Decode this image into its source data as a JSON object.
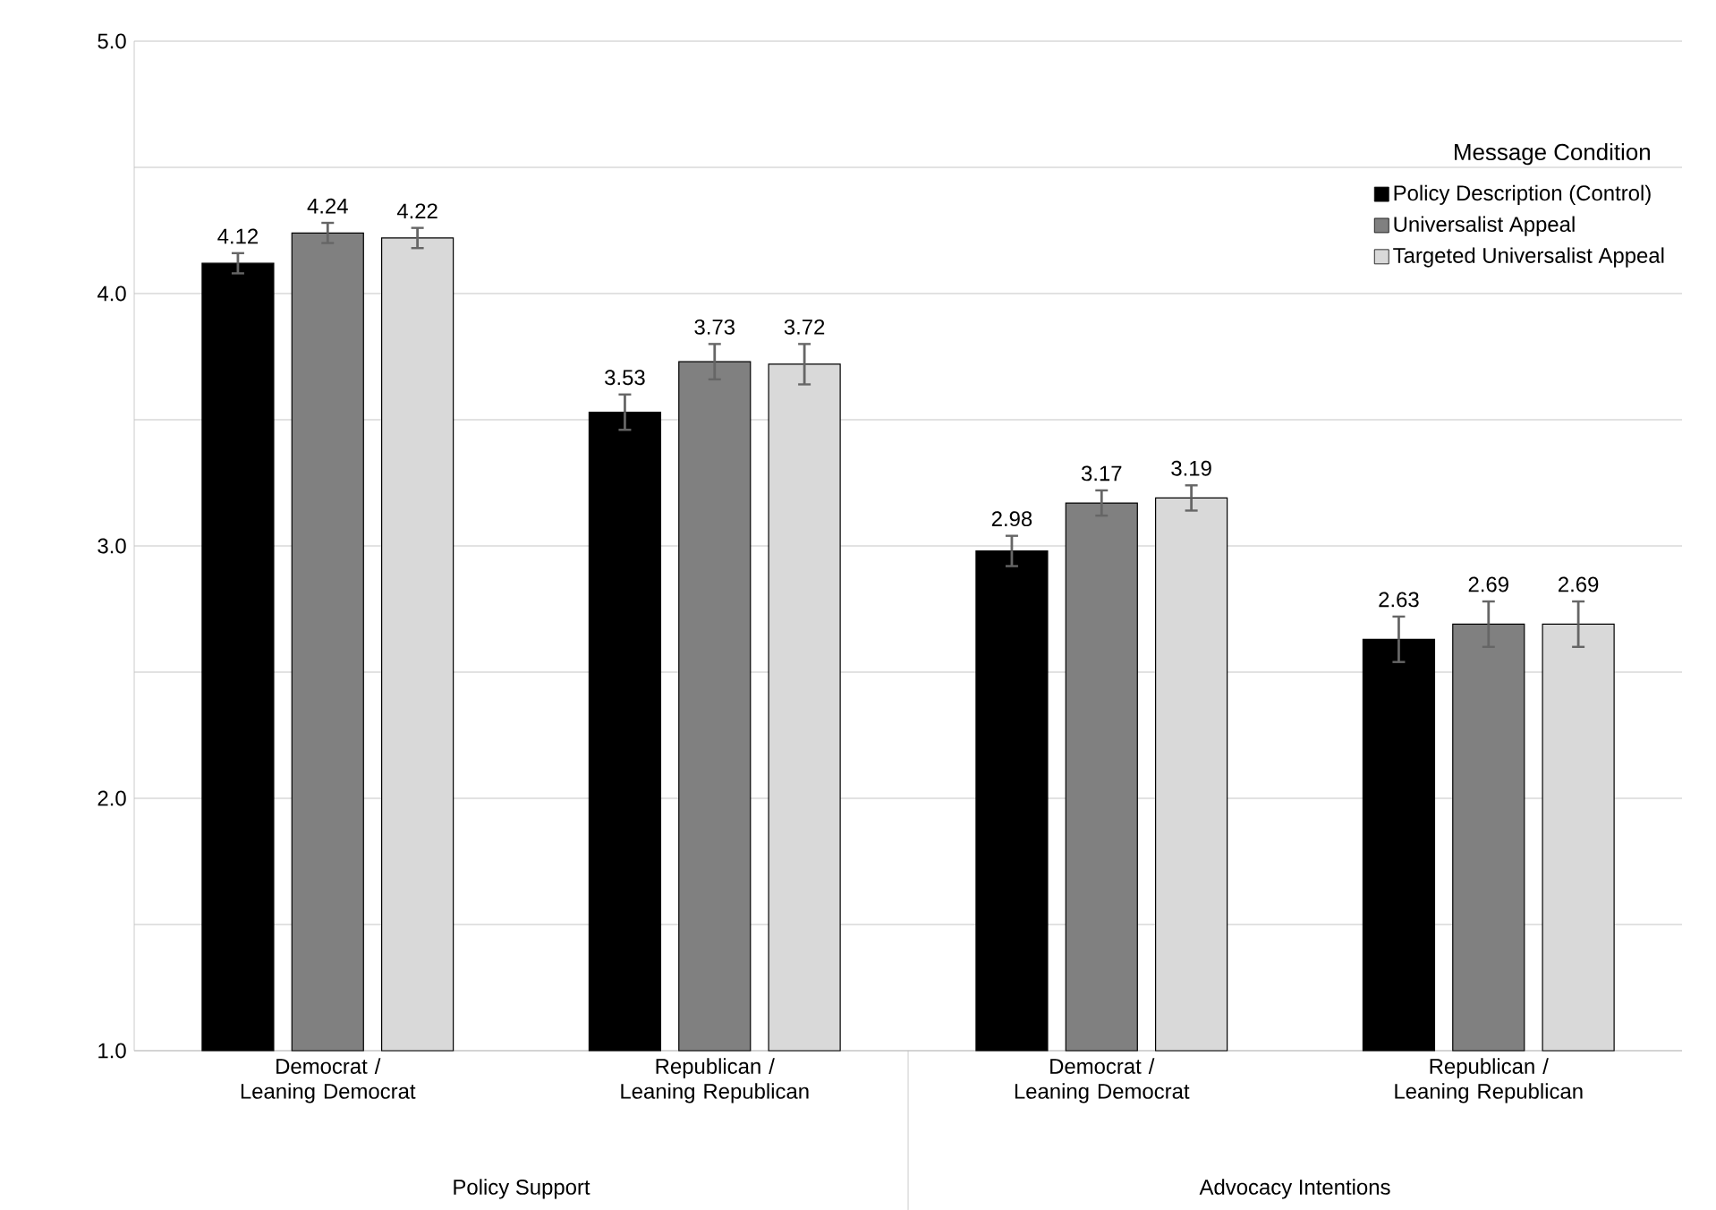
{
  "chart_data": {
    "type": "bar",
    "categories": [
      "Democrat / Leaning Democrat",
      "Republican / Leaning Republican",
      "Democrat / Leaning Democrat",
      "Republican / Leaning Republican"
    ],
    "series": [
      {
        "name": "Policy Description (Control)",
        "color": "#000000",
        "values": [
          4.12,
          3.53,
          2.98,
          2.63
        ],
        "errors": [
          0.04,
          0.07,
          0.06,
          0.09
        ]
      },
      {
        "name": "Universalist Appeal",
        "color": "#808080",
        "values": [
          4.24,
          3.73,
          3.17,
          2.69
        ],
        "errors": [
          0.04,
          0.07,
          0.05,
          0.09
        ]
      },
      {
        "name": "Targeted Universalist Appeal",
        "color": "#d9d9d9",
        "values": [
          4.22,
          3.72,
          3.19,
          2.69
        ],
        "errors": [
          0.04,
          0.08,
          0.05,
          0.09
        ]
      }
    ],
    "legend_title": "Message Condition",
    "legend": "top right",
    "ylim": [
      1.0,
      5.0
    ],
    "yticks": [
      {
        "value": 1.0,
        "label": "1.0"
      },
      {
        "value": 1.5,
        "label": null
      },
      {
        "value": 2.0,
        "label": "2.0"
      },
      {
        "value": 2.5,
        "label": null
      },
      {
        "value": 3.0,
        "label": "3.0"
      },
      {
        "value": 3.5,
        "label": null
      },
      {
        "value": 4.0,
        "label": "4.0"
      },
      {
        "value": 4.5,
        "label": null
      },
      {
        "value": 5.0,
        "label": "5.0"
      }
    ],
    "grid": "y",
    "data_labels": true,
    "annotations": [
      "Policy Support",
      "Advocacy Intentions"
    ]
  }
}
